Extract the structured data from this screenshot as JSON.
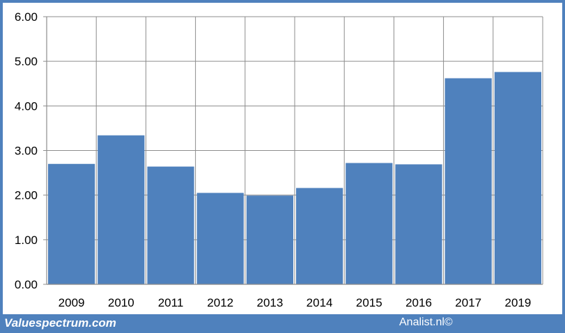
{
  "footer": {
    "source_left": "Valuespectrum.com",
    "source_right": "Analist.nl©"
  },
  "colors": {
    "bar": "#4f81bd",
    "background": "#4f81bd",
    "grid": "#8c8c8c"
  },
  "chart_data": {
    "type": "bar",
    "categories": [
      "2009",
      "2010",
      "2011",
      "2012",
      "2013",
      "2014",
      "2015",
      "2016",
      "2017",
      "2019"
    ],
    "values": [
      2.7,
      3.34,
      2.64,
      2.05,
      1.99,
      2.16,
      2.72,
      2.69,
      4.62,
      4.76
    ],
    "ylim": [
      0,
      6
    ],
    "yticks": [
      "0.00",
      "1.00",
      "2.00",
      "3.00",
      "4.00",
      "5.00",
      "6.00"
    ],
    "grid": true,
    "legend": "none"
  }
}
